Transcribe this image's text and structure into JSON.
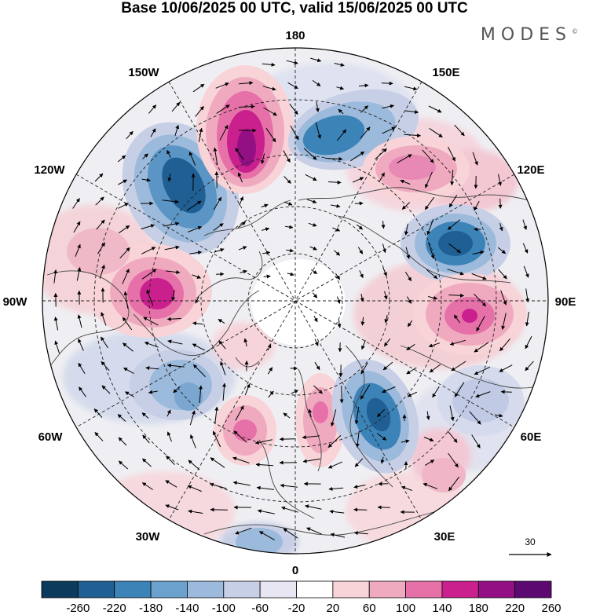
{
  "header": {
    "title": "Base 10/06/2025 00 UTC, valid 15/06/2025 00 UTC",
    "brand": "MODES"
  },
  "map": {
    "projection": "north polar stereographic",
    "longitude_labels": {
      "lon_180": "180",
      "lon_150e": "150E",
      "lon_120e": "120E",
      "lon_90e": "90E",
      "lon_60e": "60E",
      "lon_30e": "30E",
      "lon_0": "0",
      "lon_30w": "30W",
      "lon_60w": "60W",
      "lon_90w": "90W",
      "lon_120w": "120W",
      "lon_150w": "150W"
    },
    "reference_vector": "30",
    "colors": {
      "strong_positive": "#8a0f86",
      "positive": "#e8a0c6",
      "weak_positive": "#f6d4dc",
      "neutral": "#ffffff",
      "weak_negative": "#d9dcec",
      "negative": "#7aa6d0",
      "strong_negative": "#1f5f93"
    }
  },
  "colorbar": {
    "labels": [
      "-260",
      "-220",
      "-180",
      "-140",
      "-100",
      "-60",
      "-20",
      "20",
      "60",
      "100",
      "140",
      "180",
      "220",
      "260"
    ],
    "colors": [
      "#0b3a5c",
      "#1f5f93",
      "#3c83b8",
      "#6ba1cd",
      "#9cbadb",
      "#c7cfe6",
      "#e7e6f2",
      "#ffffff",
      "#f8d3d7",
      "#f0aac0",
      "#e671a8",
      "#c9208e",
      "#930f84",
      "#5c0a72"
    ]
  }
}
